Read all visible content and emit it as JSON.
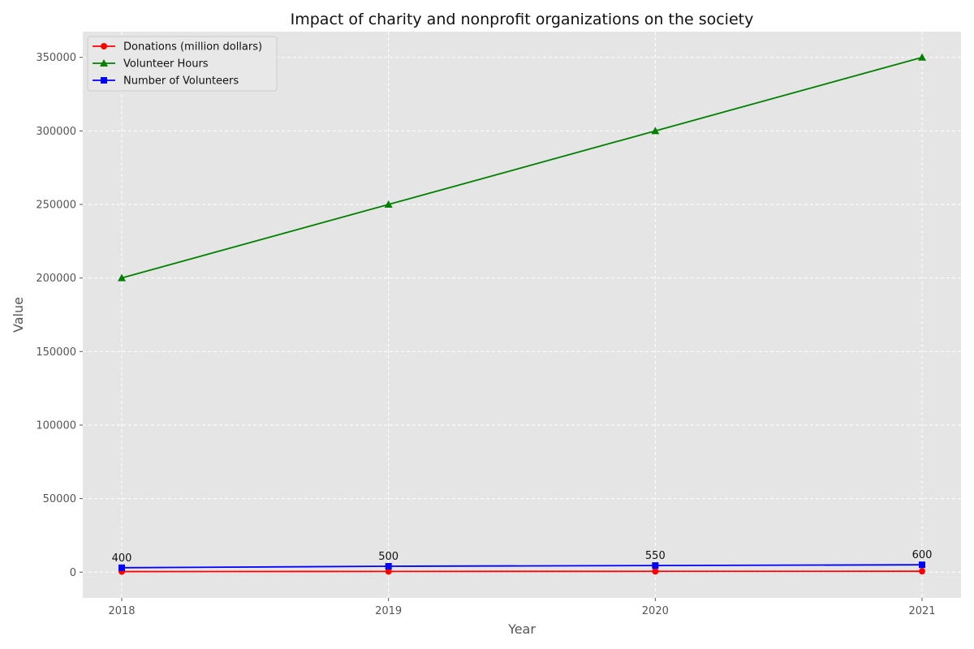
{
  "chart_data": {
    "type": "line",
    "title": "Impact of charity and nonprofit organizations on the society",
    "xlabel": "Year",
    "ylabel": "Value",
    "x": [
      "2018",
      "2019",
      "2020",
      "2021"
    ],
    "ylim": [
      -17500,
      367500
    ],
    "yticks": [
      "0",
      "50000",
      "100000",
      "150000",
      "200000",
      "250000",
      "300000",
      "350000"
    ],
    "grid": true,
    "legend_position": "top-left",
    "series": [
      {
        "name": "Donations (million dollars)",
        "color": "#ff0000",
        "marker": "circle",
        "values": [
          400,
          500,
          550,
          600
        ]
      },
      {
        "name": "Volunteer Hours",
        "color": "#008000",
        "marker": "triangle",
        "values": [
          200000,
          250000,
          300000,
          350000
        ]
      },
      {
        "name": "Number of Volunteers",
        "color": "#0000ff",
        "marker": "square",
        "values": [
          3000,
          4000,
          4500,
          5000
        ]
      }
    ],
    "annotations": [
      "400",
      "500",
      "550",
      "600"
    ],
    "background": "#e5e5e5",
    "grid_color": "#ffffff"
  }
}
